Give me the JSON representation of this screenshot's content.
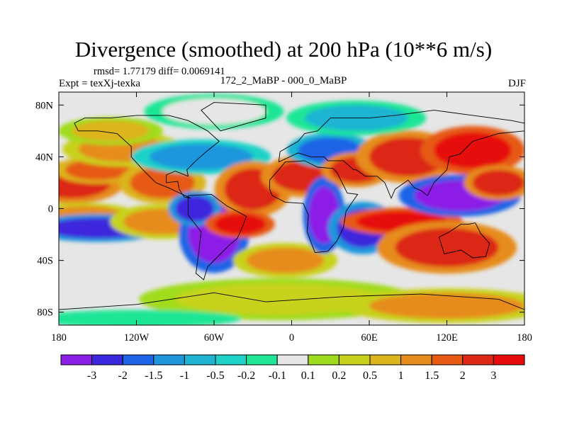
{
  "header": {
    "title": "Divergence (smoothed) at 200 hPa (10**6 m/s)",
    "stats": "rmsd= 1.77179 diff= 0.0069141",
    "experiment": "Expt = texXj-texka",
    "subtitle": "172_2_MaBP - 000_0_MaBP",
    "season": "DJF"
  },
  "chart_data": {
    "type": "heatmap",
    "title": "Divergence (smoothed) at 200 hPa (10**6 m/s)",
    "projection": "cylindrical equidistant",
    "xlim": [
      -180,
      180
    ],
    "ylim": [
      -90,
      90
    ],
    "x_ticks": [
      {
        "lon": -180,
        "label": "180"
      },
      {
        "lon": -120,
        "label": "120W"
      },
      {
        "lon": -60,
        "label": "60W"
      },
      {
        "lon": 0,
        "label": "0"
      },
      {
        "lon": 60,
        "label": "60E"
      },
      {
        "lon": 120,
        "label": "120E"
      },
      {
        "lon": 180,
        "label": "180"
      }
    ],
    "y_ticks": [
      {
        "lat": 80,
        "label": "80N"
      },
      {
        "lat": 40,
        "label": "40N"
      },
      {
        "lat": 0,
        "label": "0"
      },
      {
        "lat": -40,
        "label": "40S"
      },
      {
        "lat": -80,
        "label": "80S"
      }
    ],
    "colorbar": {
      "levels": [
        "-3",
        "-2",
        "-1.5",
        "-1",
        "-0.5",
        "-0.2",
        "-0.1",
        "0.1",
        "0.2",
        "0.5",
        "1",
        "1.5",
        "2",
        "3"
      ],
      "colors": [
        "#8c1ee6",
        "#3c28dc",
        "#1e64e6",
        "#1e96dc",
        "#1eb4d2",
        "#1ed2c8",
        "#1ee696",
        "#e6e6e6",
        "#a0dc1e",
        "#c8d21e",
        "#dcb41e",
        "#e68c1e",
        "#e65a14",
        "#dc2814",
        "#e60a0a"
      ]
    },
    "blobs": [
      {
        "lon": -170,
        "lat": 20,
        "rx": 30,
        "ry": 12,
        "level": 13
      },
      {
        "lon": -150,
        "lat": 30,
        "rx": 25,
        "ry": 8,
        "level": 12
      },
      {
        "lon": -130,
        "lat": 46,
        "rx": 35,
        "ry": 10,
        "level": 11
      },
      {
        "lon": -140,
        "lat": 60,
        "rx": 30,
        "ry": 8,
        "level": 10
      },
      {
        "lon": -160,
        "lat": -5,
        "rx": 30,
        "ry": 7,
        "level": 11
      },
      {
        "lon": -150,
        "lat": -15,
        "rx": 40,
        "ry": 8,
        "level": 1
      },
      {
        "lon": -100,
        "lat": -10,
        "rx": 30,
        "ry": 10,
        "level": 11
      },
      {
        "lon": -100,
        "lat": 20,
        "rx": 25,
        "ry": 12,
        "level": 12
      },
      {
        "lon": -70,
        "lat": 40,
        "rx": 40,
        "ry": 10,
        "level": 3
      },
      {
        "lon": -60,
        "lat": -20,
        "rx": 20,
        "ry": 22,
        "level": 0
      },
      {
        "lon": -75,
        "lat": 0,
        "rx": 15,
        "ry": 10,
        "level": 1
      },
      {
        "lon": -30,
        "lat": 15,
        "rx": 22,
        "ry": 16,
        "level": 13
      },
      {
        "lon": -40,
        "lat": -12,
        "rx": 20,
        "ry": 8,
        "level": 14
      },
      {
        "lon": -5,
        "lat": -40,
        "rx": 30,
        "ry": 10,
        "level": 11
      },
      {
        "lon": 10,
        "lat": 25,
        "rx": 25,
        "ry": 12,
        "level": 13
      },
      {
        "lon": 25,
        "lat": -5,
        "rx": 12,
        "ry": 22,
        "level": 0
      },
      {
        "lon": 30,
        "lat": 45,
        "rx": 25,
        "ry": 10,
        "level": 2
      },
      {
        "lon": 50,
        "lat": 30,
        "rx": 20,
        "ry": 10,
        "level": 13
      },
      {
        "lon": 55,
        "lat": -15,
        "rx": 20,
        "ry": 15,
        "level": 1
      },
      {
        "lon": 85,
        "lat": -10,
        "rx": 35,
        "ry": 8,
        "level": 14
      },
      {
        "lon": 90,
        "lat": 40,
        "rx": 30,
        "ry": 15,
        "level": 13
      },
      {
        "lon": 130,
        "lat": 10,
        "rx": 35,
        "ry": 12,
        "level": 0
      },
      {
        "lon": 140,
        "lat": 45,
        "rx": 30,
        "ry": 14,
        "level": 14
      },
      {
        "lon": 160,
        "lat": 20,
        "rx": 20,
        "ry": 10,
        "level": 13
      },
      {
        "lon": 120,
        "lat": -30,
        "rx": 40,
        "ry": 15,
        "level": 13
      },
      {
        "lon": -10,
        "lat": -70,
        "rx": 80,
        "ry": 12,
        "level": 9
      },
      {
        "lon": 120,
        "lat": -75,
        "rx": 60,
        "ry": 10,
        "level": 11
      },
      {
        "lon": -120,
        "lat": -85,
        "rx": 60,
        "ry": 5,
        "level": 6
      },
      {
        "lon": -60,
        "lat": 75,
        "rx": 40,
        "ry": 10,
        "level": 7
      },
      {
        "lon": 50,
        "lat": 70,
        "rx": 40,
        "ry": 10,
        "level": 4
      }
    ]
  }
}
